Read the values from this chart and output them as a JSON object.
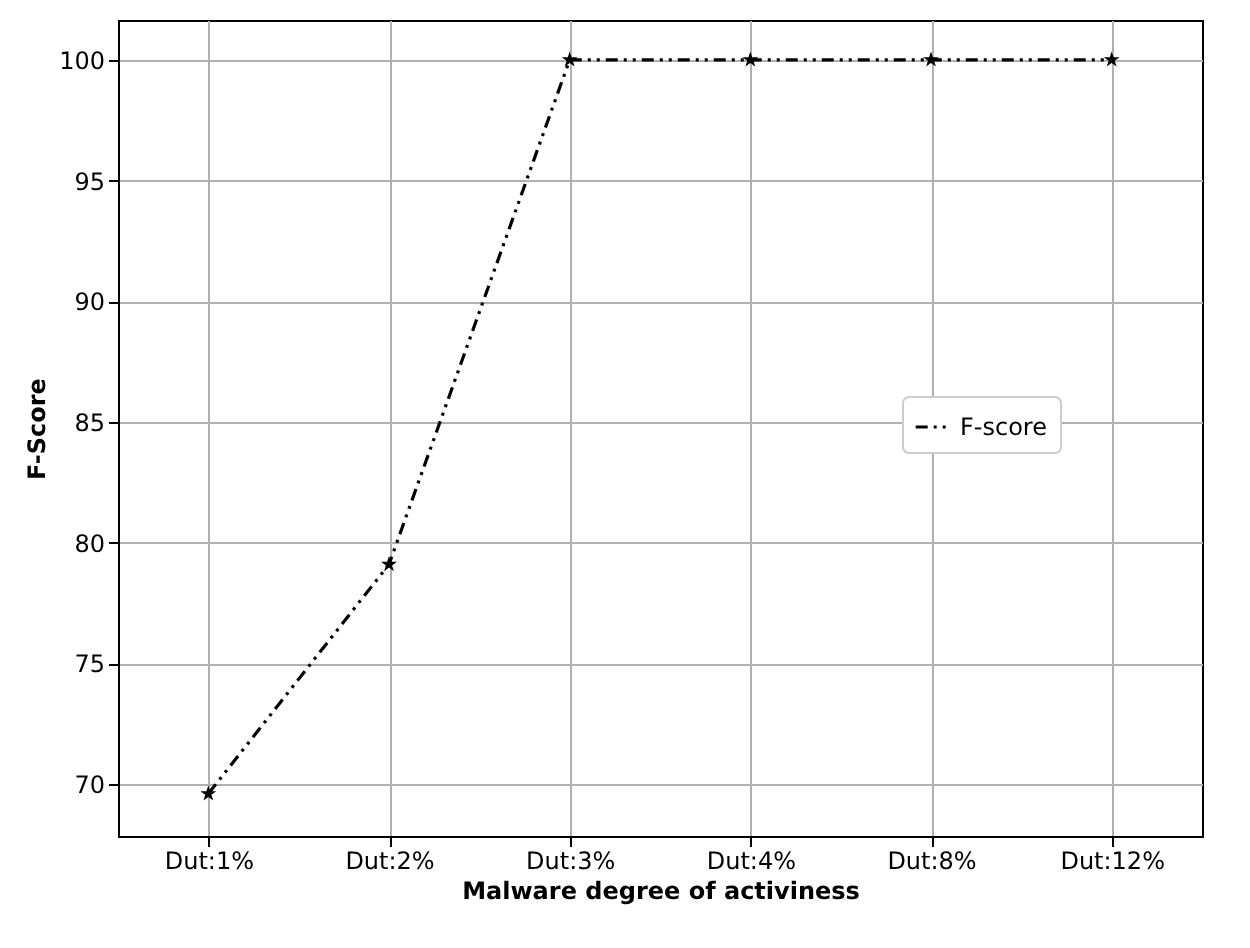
{
  "chart_data": {
    "type": "line",
    "xlabel": "Malware degree of activiness",
    "ylabel": "F-Score",
    "categories": [
      "Dut:1%",
      "Dut:2%",
      "Dut:3%",
      "Dut:4%",
      "Dut:8%",
      "Dut:12%"
    ],
    "series": [
      {
        "name": "F-score",
        "color": "#000000",
        "values": [
          69.6,
          79.1,
          100,
          100,
          100,
          100
        ]
      }
    ],
    "ylim": [
      67.85,
      101.65
    ],
    "yticks": [
      70,
      75,
      80,
      85,
      90,
      95,
      100
    ],
    "grid": true,
    "legend": "right",
    "marker": "star",
    "line_style": "dashed"
  }
}
